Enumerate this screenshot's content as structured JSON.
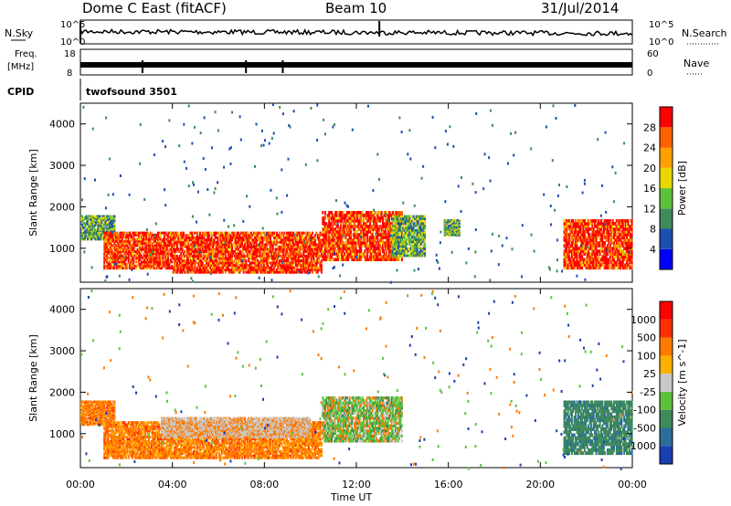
{
  "header": {
    "station": "Dome C East (fitACF)",
    "beam": "Beam 10",
    "date": "31/Jul/2014"
  },
  "strips": {
    "nsky_label": "N.Sky",
    "nsky_top": "10^5",
    "nsky_bottom": "10^0",
    "nsearch_label": "N.Search",
    "nsearch_top": "10^5",
    "nsearch_bottom": "10^0",
    "freq_label_1": "Freq.",
    "freq_label_2": "[MHz]",
    "freq_top": "18",
    "freq_bottom": "8",
    "nave_label": "Nave",
    "nave_top": "60",
    "nave_bottom": "0",
    "cpid_label": "CPID",
    "cpid_value": "twofsound 3501"
  },
  "chart_data": [
    {
      "type": "heatmap",
      "name": "power-panel",
      "xlabel": "Time UT",
      "ylabel": "Slant Range [km]",
      "x_ticks": [
        "00:00",
        "04:00",
        "08:00",
        "12:00",
        "16:00",
        "20:00",
        "00:00"
      ],
      "x_range_hours": [
        0,
        24
      ],
      "y_ticks": [
        1000,
        2000,
        3000,
        4000
      ],
      "y_range_km": [
        180,
        4500
      ],
      "colorbar": {
        "label": "Power [dB]",
        "ticks": [
          "4",
          "8",
          "12",
          "16",
          "20",
          "24",
          "28"
        ],
        "colors": [
          "#0000ff",
          "#1e4fb0",
          "#3f8a5a",
          "#5cc23a",
          "#e8d800",
          "#ffa000",
          "#ff6000",
          "#ff0000"
        ]
      },
      "regions": [
        {
          "t0": 0.0,
          "t1": 1.5,
          "r0": 1200,
          "r1": 1800,
          "level": "mid"
        },
        {
          "t0": 1.0,
          "t1": 4.0,
          "r0": 500,
          "r1": 1400,
          "level": "high"
        },
        {
          "t0": 4.0,
          "t1": 10.5,
          "r0": 400,
          "r1": 1400,
          "level": "high"
        },
        {
          "t0": 10.5,
          "t1": 14.0,
          "r0": 700,
          "r1": 1900,
          "level": "high"
        },
        {
          "t0": 13.5,
          "t1": 15.0,
          "r0": 800,
          "r1": 1800,
          "level": "mid"
        },
        {
          "t0": 15.8,
          "t1": 16.5,
          "r0": 1300,
          "r1": 1700,
          "level": "mid"
        },
        {
          "t0": 21.0,
          "t1": 24.0,
          "r0": 500,
          "r1": 1700,
          "level": "high"
        }
      ]
    },
    {
      "type": "heatmap",
      "name": "velocity-panel",
      "xlabel": "Time UT",
      "ylabel": "Slant Range [km]",
      "x_ticks": [
        "00:00",
        "04:00",
        "08:00",
        "12:00",
        "16:00",
        "20:00",
        "00:00"
      ],
      "x_range_hours": [
        0,
        24
      ],
      "y_ticks": [
        1000,
        2000,
        3000,
        4000
      ],
      "y_range_km": [
        180,
        4500
      ],
      "colorbar": {
        "label": "Velocity [m s^-1]",
        "ticks": [
          "1000",
          "500",
          "100",
          "25",
          "-25",
          "-100",
          "-500",
          "-1000"
        ],
        "colors": [
          "#1a3fb0",
          "#2b6e9a",
          "#3f8a5a",
          "#5cc23a",
          "#c8c8c8",
          "#ffb000",
          "#ff7a00",
          "#ff3000",
          "#ff0000"
        ]
      },
      "regions": [
        {
          "t0": 0.0,
          "t1": 1.5,
          "r0": 1200,
          "r1": 1800,
          "level": "neg"
        },
        {
          "t0": 1.0,
          "t1": 10.5,
          "r0": 400,
          "r1": 1300,
          "level": "neg"
        },
        {
          "t0": 3.5,
          "t1": 10.0,
          "r0": 900,
          "r1": 1400,
          "level": "zero"
        },
        {
          "t0": 10.5,
          "t1": 14.0,
          "r0": 800,
          "r1": 1900,
          "level": "mixed"
        },
        {
          "t0": 21.0,
          "t1": 24.0,
          "r0": 500,
          "r1": 1800,
          "level": "pos"
        }
      ]
    }
  ]
}
